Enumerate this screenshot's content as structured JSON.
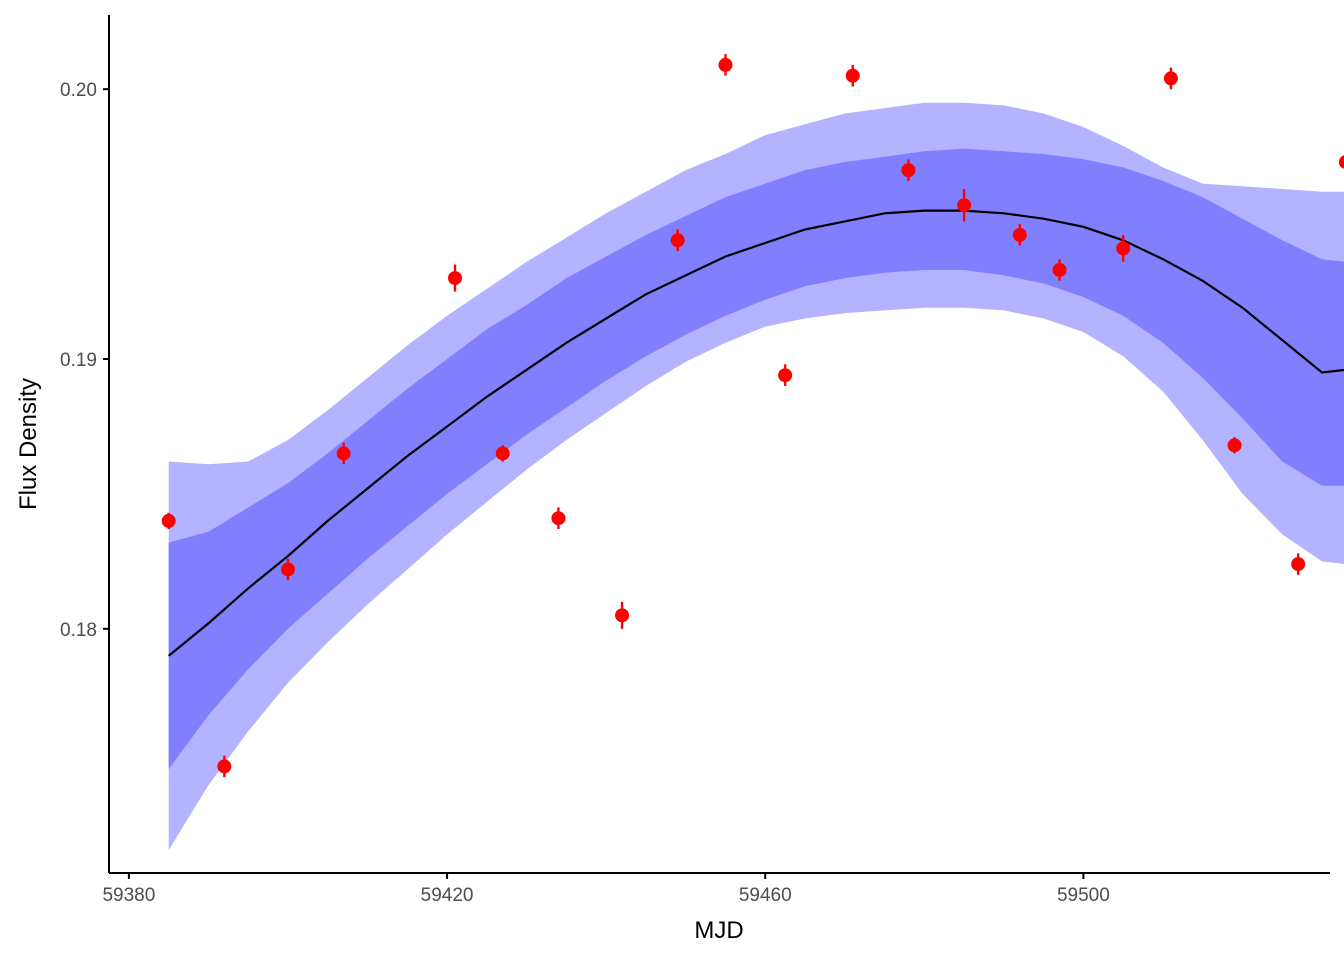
{
  "chart_data": {
    "type": "scatter",
    "title": "",
    "xlabel": "MJD",
    "ylabel": "Flux Density",
    "xlim": [
      59377.5,
      59531
    ],
    "ylim": [
      0.17095,
      0.20275
    ],
    "xticks": [
      59380,
      59420,
      59460,
      59500
    ],
    "xtick_labels": [
      "59380",
      "59420",
      "59460",
      "59500"
    ],
    "yticks": [
      0.18,
      0.19,
      0.2
    ],
    "ytick_labels": [
      "0.18",
      "0.19",
      "0.20"
    ],
    "grid": false,
    "legend": "none",
    "colors": {
      "points": "#ff0000",
      "line": "#000000",
      "band_inner": "#8080ff",
      "band_outer": "#b3b3ff",
      "axis": "#000000",
      "tick_text": "#4d4d4d"
    },
    "observations": [
      {
        "x": 59385,
        "y": 0.184,
        "err": 0.0003
      },
      {
        "x": 59392,
        "y": 0.1749,
        "err": 0.0004
      },
      {
        "x": 59400,
        "y": 0.1822,
        "err": 0.0004
      },
      {
        "x": 59407,
        "y": 0.1865,
        "err": 0.0004
      },
      {
        "x": 59421,
        "y": 0.193,
        "err": 0.0005
      },
      {
        "x": 59427,
        "y": 0.1865,
        "err": 0.0003
      },
      {
        "x": 59434,
        "y": 0.1841,
        "err": 0.0004
      },
      {
        "x": 59442,
        "y": 0.1805,
        "err": 0.0005
      },
      {
        "x": 59449,
        "y": 0.1944,
        "err": 0.0004
      },
      {
        "x": 59455,
        "y": 0.2009,
        "err": 0.0004
      },
      {
        "x": 59462.5,
        "y": 0.1894,
        "err": 0.0004
      },
      {
        "x": 59471,
        "y": 0.2005,
        "err": 0.0004
      },
      {
        "x": 59478,
        "y": 0.197,
        "err": 0.0004
      },
      {
        "x": 59485,
        "y": 0.1957,
        "err": 0.0006
      },
      {
        "x": 59492,
        "y": 0.1946,
        "err": 0.0004
      },
      {
        "x": 59497,
        "y": 0.1933,
        "err": 0.0004
      },
      {
        "x": 59505,
        "y": 0.1941,
        "err": 0.0005
      },
      {
        "x": 59511,
        "y": 0.2004,
        "err": 0.0004
      },
      {
        "x": 59519,
        "y": 0.1868,
        "err": 0.0003
      },
      {
        "x": 59527,
        "y": 0.1824,
        "err": 0.0004
      },
      {
        "x": 59533,
        "y": 0.1973,
        "err": 0.0004
      }
    ],
    "model": {
      "x": [
        59385,
        59390,
        59395,
        59400,
        59405,
        59410,
        59415,
        59420,
        59425,
        59430,
        59435,
        59440,
        59445,
        59450,
        59455,
        59460,
        59465,
        59470,
        59475,
        59480,
        59485,
        59490,
        59495,
        59500,
        59505,
        59510,
        59515,
        59520,
        59525,
        59530,
        59533
      ],
      "median": [
        0.179,
        0.1802,
        0.1815,
        0.1827,
        0.184,
        0.1852,
        0.1864,
        0.1875,
        0.1886,
        0.1896,
        0.1906,
        0.1915,
        0.1924,
        0.1931,
        0.1938,
        0.1943,
        0.1948,
        0.1951,
        0.1954,
        0.1955,
        0.1955,
        0.1954,
        0.1952,
        0.1949,
        0.1944,
        0.1937,
        0.1929,
        0.1919,
        0.1907,
        0.1895,
        0.1896
      ],
      "inner_lower": [
        0.1748,
        0.1768,
        0.1785,
        0.18,
        0.1813,
        0.1826,
        0.1838,
        0.185,
        0.1861,
        0.1872,
        0.1882,
        0.1892,
        0.1901,
        0.1909,
        0.1916,
        0.1922,
        0.1927,
        0.193,
        0.1932,
        0.1933,
        0.1933,
        0.1931,
        0.1928,
        0.1923,
        0.1916,
        0.1906,
        0.1893,
        0.1878,
        0.1862,
        0.1853,
        0.1853
      ],
      "inner_upper": [
        0.1832,
        0.1836,
        0.1845,
        0.1854,
        0.1865,
        0.1877,
        0.1889,
        0.19,
        0.1911,
        0.192,
        0.193,
        0.1938,
        0.1946,
        0.1953,
        0.196,
        0.1965,
        0.197,
        0.1973,
        0.1975,
        0.1977,
        0.1978,
        0.1977,
        0.1976,
        0.1974,
        0.1971,
        0.1966,
        0.196,
        0.1952,
        0.1944,
        0.1937,
        0.1936
      ],
      "outer_lower": [
        0.1718,
        0.1742,
        0.1762,
        0.178,
        0.1795,
        0.1809,
        0.1822,
        0.1835,
        0.1847,
        0.1859,
        0.187,
        0.188,
        0.189,
        0.1899,
        0.1906,
        0.1912,
        0.1915,
        0.1917,
        0.1918,
        0.1919,
        0.1919,
        0.1918,
        0.1915,
        0.191,
        0.1901,
        0.1888,
        0.187,
        0.185,
        0.1835,
        0.1825,
        0.1824
      ],
      "outer_upper": [
        0.1862,
        0.1861,
        0.1862,
        0.187,
        0.1881,
        0.1893,
        0.1905,
        0.1916,
        0.1926,
        0.1936,
        0.1945,
        0.1954,
        0.1962,
        0.197,
        0.1976,
        0.1983,
        0.1987,
        0.1991,
        0.1993,
        0.1995,
        0.1995,
        0.1994,
        0.1991,
        0.1986,
        0.1979,
        0.1971,
        0.1965,
        0.1964,
        0.1963,
        0.1962,
        0.1962
      ]
    }
  }
}
